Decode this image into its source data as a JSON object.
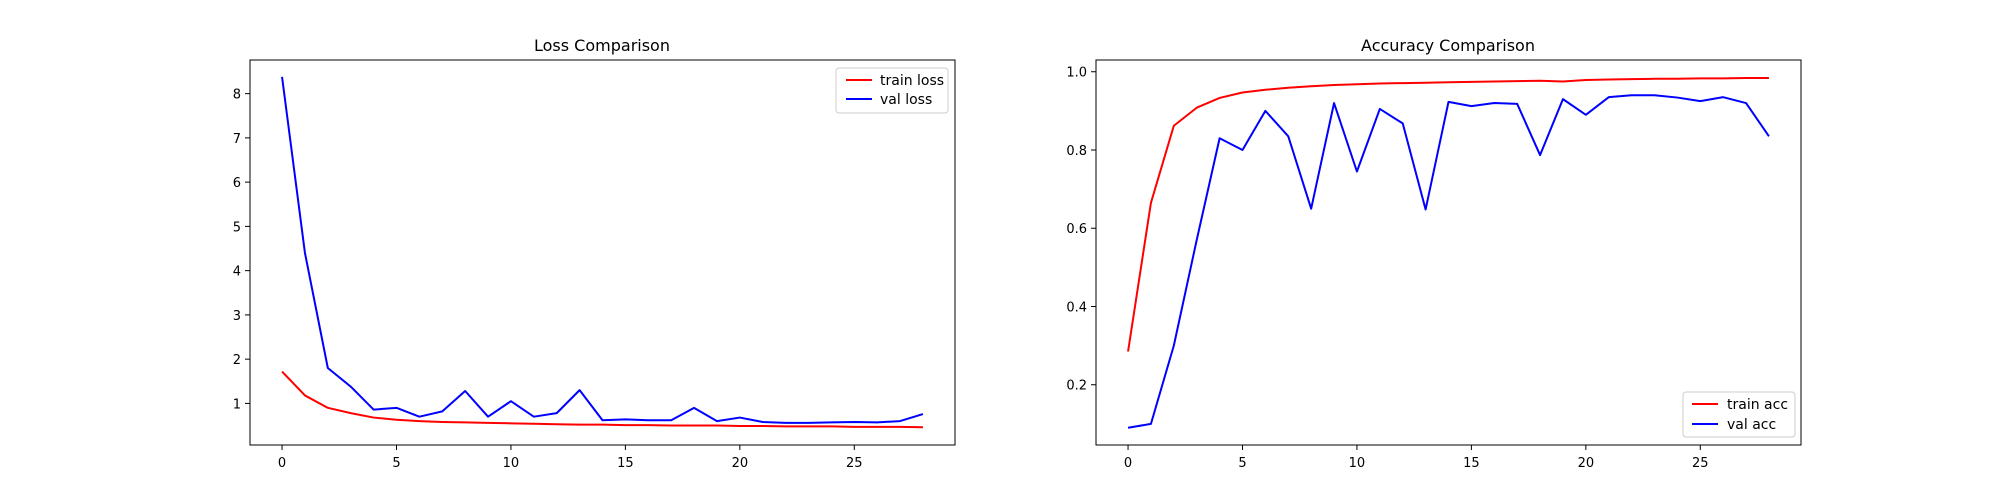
{
  "chart_data": [
    {
      "type": "line",
      "title": "Loss Comparison",
      "xlabel": "",
      "ylabel": "",
      "xlim": [
        -1.4,
        29.4
      ],
      "ylim": [
        0.06,
        8.76
      ],
      "xticks": [
        0,
        5,
        10,
        15,
        20,
        25
      ],
      "yticks": [
        1,
        2,
        3,
        4,
        5,
        6,
        7,
        8
      ],
      "legend_position": "top-right",
      "grid": false,
      "x": [
        0,
        1,
        2,
        3,
        4,
        5,
        6,
        7,
        8,
        9,
        10,
        11,
        12,
        13,
        14,
        15,
        16,
        17,
        18,
        19,
        20,
        21,
        22,
        23,
        24,
        25,
        26,
        27,
        28
      ],
      "series": [
        {
          "name": "train loss",
          "color": "#ff0000",
          "values": [
            1.72,
            1.18,
            0.9,
            0.78,
            0.68,
            0.63,
            0.6,
            0.58,
            0.57,
            0.56,
            0.55,
            0.54,
            0.53,
            0.52,
            0.52,
            0.51,
            0.51,
            0.5,
            0.5,
            0.5,
            0.49,
            0.49,
            0.48,
            0.48,
            0.48,
            0.47,
            0.47,
            0.47,
            0.46
          ]
        },
        {
          "name": "val loss",
          "color": "#0000ff",
          "values": [
            8.38,
            4.4,
            1.8,
            1.38,
            0.86,
            0.9,
            0.7,
            0.82,
            1.28,
            0.7,
            1.05,
            0.7,
            0.78,
            1.3,
            0.62,
            0.64,
            0.62,
            0.62,
            0.9,
            0.6,
            0.68,
            0.58,
            0.56,
            0.56,
            0.57,
            0.58,
            0.57,
            0.6,
            0.76
          ]
        }
      ]
    },
    {
      "type": "line",
      "title": "Accuracy Comparison",
      "xlabel": "",
      "ylabel": "",
      "xlim": [
        -1.4,
        29.4
      ],
      "ylim": [
        0.046,
        1.03
      ],
      "xticks": [
        0,
        5,
        10,
        15,
        20,
        25
      ],
      "yticks": [
        0.2,
        0.4,
        0.6,
        0.8,
        1.0
      ],
      "ytick_labels": [
        "0.2",
        "0.4",
        "0.6",
        "0.8",
        "1.0"
      ],
      "legend_position": "bottom-right",
      "grid": false,
      "x": [
        0,
        1,
        2,
        3,
        4,
        5,
        6,
        7,
        8,
        9,
        10,
        11,
        12,
        13,
        14,
        15,
        16,
        17,
        18,
        19,
        20,
        21,
        22,
        23,
        24,
        25,
        26,
        27,
        28
      ],
      "series": [
        {
          "name": "train acc",
          "color": "#ff0000",
          "values": [
            0.285,
            0.665,
            0.862,
            0.908,
            0.933,
            0.947,
            0.954,
            0.959,
            0.963,
            0.966,
            0.968,
            0.97,
            0.971,
            0.972,
            0.973,
            0.974,
            0.975,
            0.976,
            0.977,
            0.975,
            0.979,
            0.98,
            0.981,
            0.982,
            0.982,
            0.983,
            0.983,
            0.984,
            0.984
          ]
        },
        {
          "name": "val acc",
          "color": "#0000ff",
          "values": [
            0.09,
            0.1,
            0.3,
            0.57,
            0.83,
            0.8,
            0.9,
            0.835,
            0.65,
            0.92,
            0.745,
            0.905,
            0.868,
            0.648,
            0.923,
            0.912,
            0.92,
            0.918,
            0.787,
            0.93,
            0.89,
            0.935,
            0.94,
            0.94,
            0.934,
            0.925,
            0.935,
            0.92,
            0.835
          ]
        }
      ]
    }
  ]
}
